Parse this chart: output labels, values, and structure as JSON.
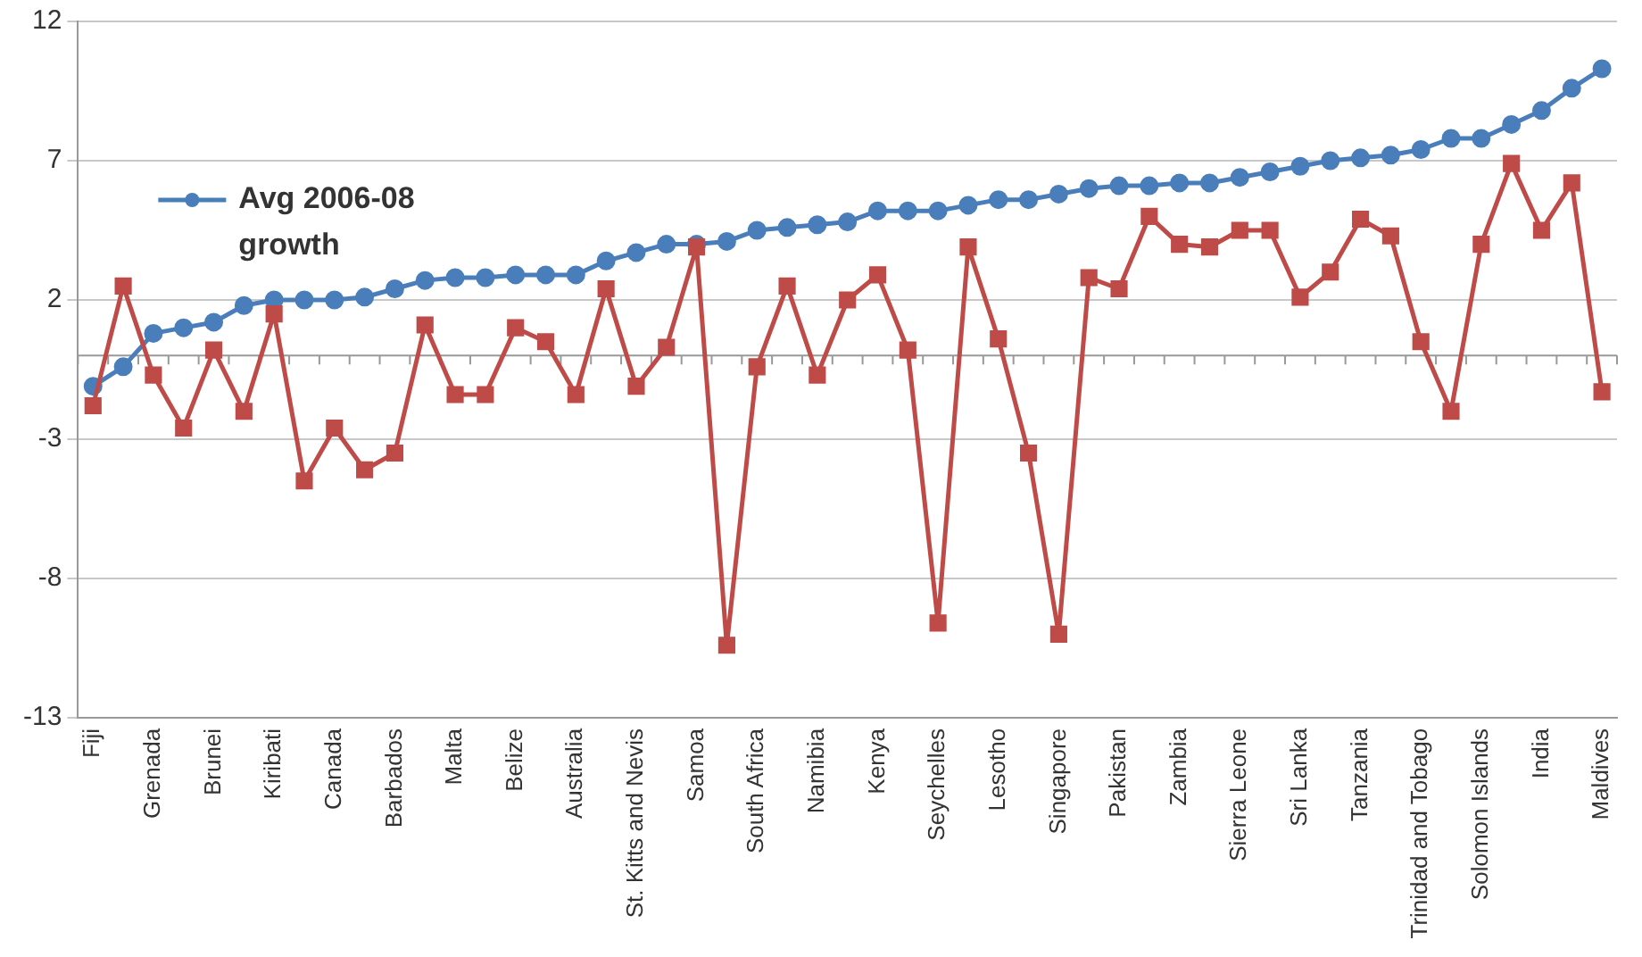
{
  "chart_data": {
    "type": "line",
    "categories": [
      "Fiji",
      null,
      "Grenada",
      null,
      "Brunei",
      null,
      "Kiribati",
      null,
      "Canada",
      null,
      "Barbados",
      null,
      "Malta",
      null,
      "Belize",
      null,
      "Australia",
      null,
      "St. Kitts and Nevis",
      null,
      "Samoa",
      null,
      "South Africa",
      null,
      "Namibia",
      null,
      "Kenya",
      null,
      "Seychelles",
      null,
      "Lesotho",
      null,
      "Singapore",
      null,
      "Pakistan",
      null,
      "Zambia",
      null,
      "Sierra Leone",
      null,
      "Sri Lanka",
      null,
      "Tanzania",
      null,
      "Trinidad and Tobago",
      null,
      "Solomon Islands",
      null,
      "India",
      null,
      "Maldives"
    ],
    "series": [
      {
        "name": "Avg 2006-08 growth",
        "color": "#4a7ebb",
        "marker": "circle",
        "values": [
          -1.1,
          -0.4,
          0.8,
          1.0,
          1.2,
          1.8,
          2.0,
          2.0,
          2.0,
          2.1,
          2.4,
          2.7,
          2.8,
          2.8,
          2.9,
          2.9,
          2.9,
          3.4,
          3.7,
          4.0,
          4.0,
          4.1,
          4.5,
          4.6,
          4.7,
          4.8,
          5.2,
          5.2,
          5.2,
          5.4,
          5.6,
          5.6,
          5.8,
          6.0,
          6.1,
          6.1,
          6.2,
          6.2,
          6.4,
          6.6,
          6.8,
          7.0,
          7.1,
          7.2,
          7.4,
          7.8,
          7.8,
          8.3,
          8.8,
          9.6,
          10.3
        ]
      },
      {
        "color": "#be4b48",
        "marker": "square",
        "values": [
          -1.8,
          2.5,
          -0.7,
          -2.6,
          0.2,
          -2.0,
          1.5,
          -4.5,
          -2.6,
          -4.1,
          -3.5,
          1.1,
          -1.4,
          -1.4,
          1.0,
          0.5,
          -1.4,
          2.4,
          -1.1,
          0.3,
          3.9,
          -10.4,
          -0.4,
          2.5,
          -0.7,
          2.0,
          2.9,
          0.2,
          -9.6,
          3.9,
          0.6,
          -3.5,
          -10.0,
          2.8,
          2.4,
          5.0,
          4.0,
          3.9,
          4.5,
          4.5,
          2.1,
          3.0,
          4.9,
          4.3,
          0.5,
          -2.0,
          4.0,
          6.9,
          4.5,
          6.2,
          -1.3
        ]
      }
    ],
    "ylim": [
      -13,
      12
    ],
    "yticks": [
      -13,
      -8,
      -3,
      2,
      7,
      12
    ],
    "grid": "y",
    "legend": "top left",
    "line_style": "solid"
  }
}
